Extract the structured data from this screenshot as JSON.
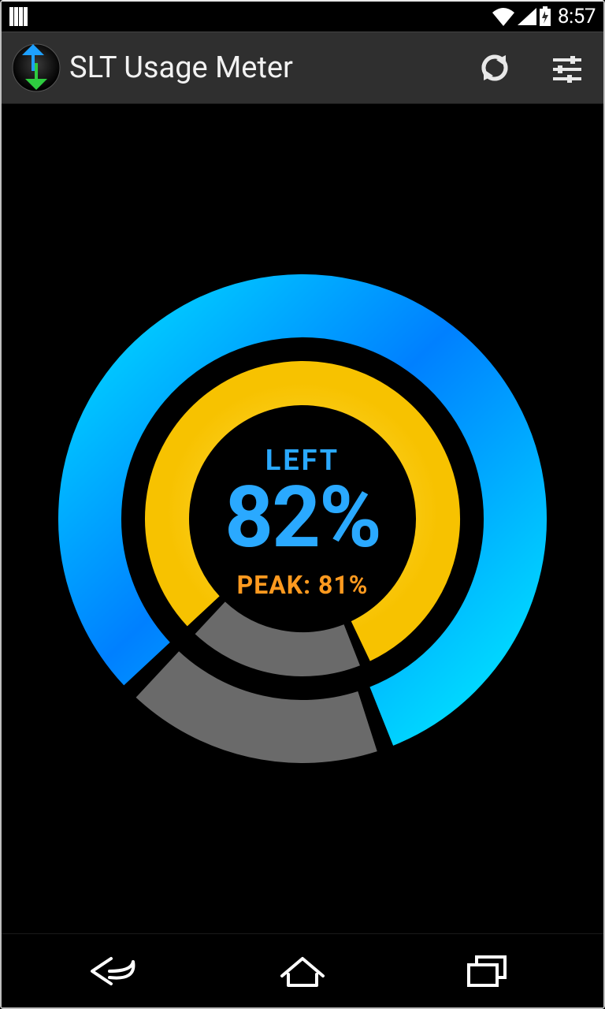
{
  "status": {
    "time": "8:57"
  },
  "actionbar": {
    "title": "SLT Usage Meter",
    "bg": "#2f2f2f",
    "title_color": "#f2f2f2"
  },
  "gauge": {
    "type": "radial-double",
    "left_label": "LEFT",
    "left_percent_text": "82%",
    "peak_text": "PEAK: 81%",
    "outer_percent": 82,
    "inner_percent": 81,
    "gap_deg": 4,
    "outer_radius": 270,
    "outer_stroke": 80,
    "inner_radius": 172,
    "inner_stroke": 56,
    "track_color": "#6a6a6a",
    "inner_fill_color": "#f7c200",
    "inner_fill_color2": "#ffd633",
    "outer_grad_a": "#00d8ff",
    "outer_grad_b": "#0080ff",
    "outer_grad_c": "#00e5ff",
    "left_label_color": "#2aa9ff",
    "pct_color": "#2aa9ff",
    "peak_color": "#ff9a1f",
    "left_label_fontsize": 36,
    "pct_fontsize": 108,
    "peak_fontsize": 32,
    "background": "#000000"
  }
}
